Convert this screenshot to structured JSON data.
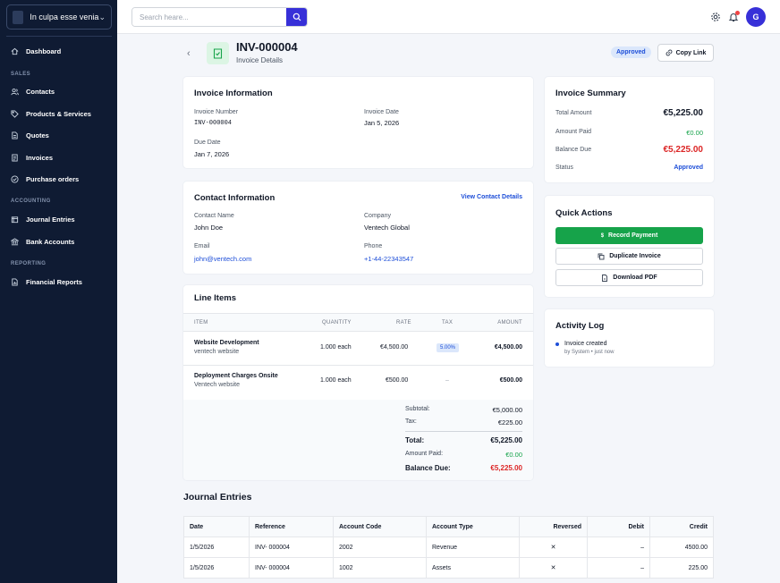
{
  "sidebar": {
    "org_name": "In culpa esse venia",
    "dashboard": "Dashboard",
    "sections": {
      "sales": "SALES",
      "accounting": "ACCOUNTING",
      "reporting": "REPORTING"
    },
    "items": {
      "contacts": "Contacts",
      "products": "Products & Services",
      "quotes": "Quotes",
      "invoices": "Invoices",
      "purchase_orders": "Purchase orders",
      "journal_entries": "Journal Entries",
      "bank_accounts": "Bank Accounts",
      "financial_reports": "Financial Reports"
    }
  },
  "topbar": {
    "search_placeholder": "Search heare...",
    "avatar_initial": "G"
  },
  "header": {
    "invoice_id": "INV-000004",
    "subtitle": "Invoice Details",
    "status_pill": "Approved",
    "copy_link": "Copy Link"
  },
  "invoice_info": {
    "title": "Invoice Information",
    "number_label": "Invoice Number",
    "number": "INV-000004",
    "date_label": "Invoice Date",
    "date": "Jan 5, 2026",
    "due_label": "Due Date",
    "due": "Jan 7, 2026"
  },
  "contact_info": {
    "title": "Contact Information",
    "view_link": "View Contact Details",
    "name_label": "Contact Name",
    "name": "John Doe",
    "company_label": "Company",
    "company": "Ventech Global",
    "email_label": "Email",
    "email": "john@ventech.com",
    "phone_label": "Phone",
    "phone": "+1-44-22343547"
  },
  "line_items": {
    "title": "Line Items",
    "headers": {
      "item": "ITEM",
      "quantity": "QUANTITY",
      "rate": "RATE",
      "tax": "TAX",
      "amount": "AMOUNT"
    },
    "rows": [
      {
        "name": "Website Development",
        "desc": "ventech website",
        "qty": "1.000 each",
        "rate": "€4,500.00",
        "tax": "5.00%",
        "amount": "€4,500.00"
      },
      {
        "name": "Deployment Charges Onsite",
        "desc": "Ventech website",
        "qty": "1.000 each",
        "rate": "€500.00",
        "tax": "–",
        "amount": "€500.00"
      }
    ],
    "totals": {
      "subtotal_label": "Subtotal:",
      "subtotal": "€5,000.00",
      "tax_label": "Tax:",
      "tax": "€225.00",
      "total_label": "Total:",
      "total": "€5,225.00",
      "paid_label": "Amount Paid:",
      "paid": "€0.00",
      "due_label": "Balance Due:",
      "due": "€5,225.00"
    }
  },
  "summary": {
    "title": "Invoice Summary",
    "total_label": "Total Amount",
    "total": "€5,225.00",
    "paid_label": "Amount Paid",
    "paid": "€0.00",
    "due_label": "Balance Due",
    "due": "€5,225.00",
    "status_label": "Status",
    "status": "Approved"
  },
  "quick_actions": {
    "title": "Quick Actions",
    "record_payment": "Record Payment",
    "duplicate": "Duplicate Invoice",
    "download": "Download PDF"
  },
  "activity": {
    "title": "Activity Log",
    "event": "Invoice created",
    "meta": "by System • just now"
  },
  "journal": {
    "title": "Journal Entries",
    "headers": {
      "date": "Date",
      "reference": "Reference",
      "account_code": "Account Code",
      "account_type": "Account Type",
      "reversed": "Reversed",
      "debit": "Debit",
      "credit": "Credit"
    },
    "rows": [
      {
        "date": "1/5/2026",
        "reference": "INV- 000004",
        "account_code": "2002",
        "account_type": "Revenue",
        "reversed": "✕",
        "debit": "–",
        "credit": "4500.00"
      },
      {
        "date": "1/5/2026",
        "reference": "INV- 000004",
        "account_code": "1002",
        "account_type": "Assets",
        "reversed": "✕",
        "debit": "–",
        "credit": "225.00"
      }
    ]
  },
  "colors": {
    "primary": "#3730d8",
    "success": "#16a34a",
    "danger": "#dc2626",
    "link": "#1d4ed8",
    "sidebar": "#0f1b33"
  }
}
